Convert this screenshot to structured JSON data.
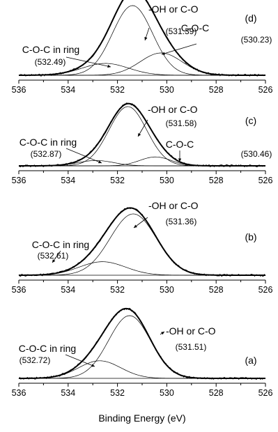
{
  "chart_data": [
    {
      "type": "line",
      "panel": "(d)",
      "xlim": [
        536,
        526
      ],
      "x_ticks": [
        "536",
        "534",
        "532",
        "530",
        "528",
        "526"
      ],
      "peaks": [
        {
          "name": "-OH or C-O",
          "center": 531.39,
          "value_label": "(531.39)",
          "amplitude": 1.0,
          "fwhm": 1.9
        },
        {
          "name": "C-O-C",
          "center": 530.23,
          "value_label": "(530.23)",
          "amplitude": 0.32,
          "fwhm": 2.0
        },
        {
          "name": "C-O-C in ring",
          "center": 532.49,
          "value_label": "(532.49)",
          "amplitude": 0.17,
          "fwhm": 2.2
        }
      ],
      "annotations": [
        {
          "label": "-OH or C-O",
          "value": "(531.39)",
          "target": 531.2
        },
        {
          "label": "C-O-C",
          "value": "(530.23)",
          "target": 530.3
        },
        {
          "label": "C-O-C in ring",
          "value": "(532.49)",
          "target": 532.5
        }
      ]
    },
    {
      "type": "line",
      "panel": "(c)",
      "xlim": [
        536,
        526
      ],
      "x_ticks": [
        "536",
        "534",
        "532",
        "530",
        "528",
        "526"
      ],
      "peaks": [
        {
          "name": "-OH or C-O",
          "center": 531.58,
          "value_label": "(531.58)",
          "amplitude": 1.0,
          "fwhm": 1.8
        },
        {
          "name": "C-O-C",
          "center": 530.46,
          "value_label": "(530.46)",
          "amplitude": 0.15,
          "fwhm": 1.5
        },
        {
          "name": "C-O-C in ring",
          "center": 532.87,
          "value_label": "(532.87)",
          "amplitude": 0.09,
          "fwhm": 1.7
        }
      ],
      "annotations": [
        {
          "label": "-OH or C-O",
          "value": "(531.58)",
          "target": 531.2
        },
        {
          "label": "C-O-C",
          "value": "(530.46)",
          "target": 530.5
        },
        {
          "label": "C-O-C in ring",
          "value": "(532.87)",
          "target": 532.8
        }
      ]
    },
    {
      "type": "line",
      "panel": "(b)",
      "xlim": [
        536,
        526
      ],
      "x_ticks": [
        "536",
        "534",
        "532",
        "530",
        "528",
        "526"
      ],
      "peaks": [
        {
          "name": "-OH or C-O",
          "center": 531.36,
          "value_label": "(531.36)",
          "amplitude": 1.0,
          "fwhm": 2.2
        },
        {
          "name": "C-O-C in ring",
          "center": 532.61,
          "value_label": "(532.61)",
          "amplitude": 0.22,
          "fwhm": 2.2
        }
      ],
      "annotations": [
        {
          "label": "-OH or C-O",
          "value": "(531.36)",
          "target": 531.1
        },
        {
          "label": "C-O-C in ring",
          "value": "(532.61)",
          "target": 533.1
        }
      ]
    },
    {
      "type": "line",
      "panel": "(a)",
      "xlim": [
        536,
        526
      ],
      "x_ticks": [
        "536",
        "534",
        "532",
        "530",
        "528",
        "526"
      ],
      "peaks": [
        {
          "name": "-OH or C-O",
          "center": 531.51,
          "value_label": "(531.51)",
          "amplitude": 1.0,
          "fwhm": 2.0
        },
        {
          "name": "C-O-C in ring",
          "center": 532.72,
          "value_label": "(532.72)",
          "amplitude": 0.28,
          "fwhm": 2.0
        }
      ],
      "annotations": [
        {
          "label": "-OH or C-O",
          "value": "(531.51)",
          "target": 531.5
        },
        {
          "label": "C-O-C in ring",
          "value": "(532.72)",
          "target": 532.9
        }
      ]
    }
  ],
  "xlabel": "Binding Energy (eV)"
}
